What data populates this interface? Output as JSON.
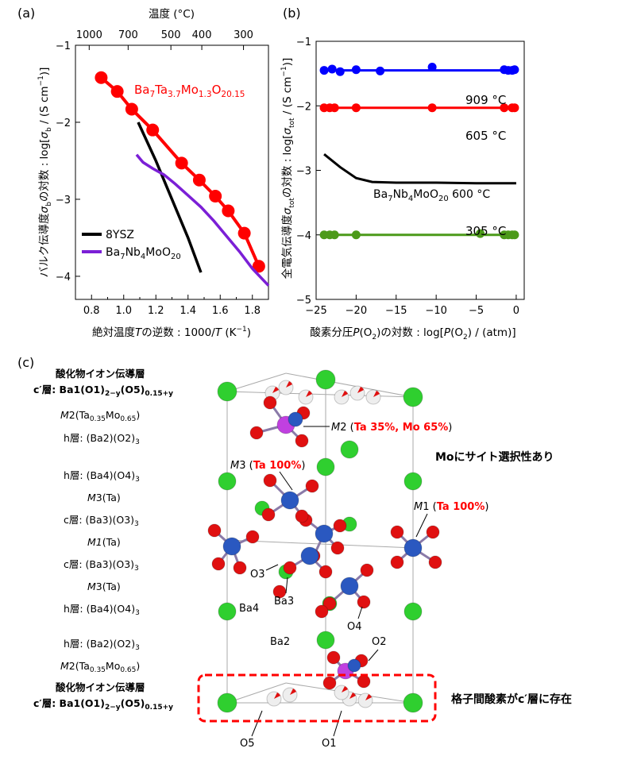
{
  "figure": {
    "panel_a": {
      "label": "(a)",
      "top_axis_label": "温度 (°C)",
      "top_ticks": [
        "1000",
        "700",
        "500",
        "400",
        "300"
      ],
      "x_label": "絶対温度Tの逆数 : 1000/T (K⁻¹)",
      "y_label": "バルク伝導度σbの対数 : log[σb / (S cm⁻¹)]",
      "series_label_main": "Ba7Ta3.7Mo1.3O20.15",
      "legend": [
        "8YSZ",
        "Ba7Nb4MoO20"
      ]
    },
    "panel_b": {
      "label": "(b)",
      "x_label": "酸素分圧P(O2)の対数 : log[P(O2) / (atm)]",
      "y_label": "全電気伝導度σtotの対数 : log[σtot / (S cm⁻¹)]",
      "curve_labels": [
        "909 °C",
        "605 °C",
        "Ba7Nb4MoO20 600 °C",
        "305 °C"
      ]
    },
    "panel_c": {
      "label": "(c)",
      "layers": [
        {
          "title": "酸化物イオン伝導層",
          "formula": "c′層: Ba1(O1)2−y(O5)0.15+y"
        },
        {
          "text": "M2(Ta0.35Mo0.65)"
        },
        {
          "text": "h層: (Ba2)(O2)3"
        },
        {
          "text": "h層: (Ba4)(O4)3"
        },
        {
          "text": "M3(Ta)"
        },
        {
          "text": "c層: (Ba3)(O3)3"
        },
        {
          "text": "M1(Ta)"
        },
        {
          "text": "c層: (Ba3)(O3)3"
        },
        {
          "text": "M3(Ta)"
        },
        {
          "text": "h層: (Ba4)(O4)3"
        },
        {
          "text": "h層: (Ba2)(O2)3"
        },
        {
          "text": "M2(Ta0.35Mo0.65)"
        },
        {
          "title": "酸化物イオン伝導層",
          "formula": "c′層: Ba1(O1)2−y(O5)0.15+y"
        }
      ],
      "annotations": {
        "m2_site": "M2 (Ta 35%, Mo 65%)",
        "m3_site": "M3 (Ta 100%)",
        "m1_site": "M1 (Ta 100%)",
        "site_selectivity": "Moにサイト選択性あり",
        "interstitial": "格子間酸素がc′層に存在",
        "atoms": [
          "O3",
          "Ba3",
          "Ba4",
          "O4",
          "O2",
          "Ba2",
          "O5",
          "O1"
        ]
      }
    }
  },
  "chart_data": [
    {
      "type": "line",
      "panel": "(a)",
      "xlabel": "絶対温度Tの逆数 : 1000/T (K⁻¹)",
      "ylabel": "バルク伝導度σbの対数 : log[σb / (S cm⁻¹)]",
      "xlim": [
        0.7,
        1.9
      ],
      "ylim": [
        -4.3,
        -1.0
      ],
      "x_ticks": [
        0.8,
        1.0,
        1.2,
        1.4,
        1.6,
        1.8
      ],
      "y_ticks": [
        -1,
        -2,
        -3,
        -4
      ],
      "top_axis": {
        "label": "温度 (°C)",
        "ticks": [
          1000,
          700,
          500,
          400,
          300
        ]
      },
      "series": [
        {
          "name": "Ba7Ta3.7Mo1.3O20.15",
          "color": "#ff0000",
          "markers": true,
          "x": [
            0.86,
            0.96,
            1.05,
            1.18,
            1.36,
            1.47,
            1.57,
            1.65,
            1.75,
            1.84
          ],
          "y": [
            -1.42,
            -1.6,
            -1.83,
            -2.1,
            -2.53,
            -2.75,
            -2.96,
            -3.15,
            -3.44,
            -3.87
          ]
        },
        {
          "name": "8YSZ",
          "color": "#000000",
          "markers": false,
          "x": [
            1.09,
            1.2,
            1.3,
            1.4,
            1.48
          ],
          "y": [
            -2.0,
            -2.5,
            -3.0,
            -3.5,
            -3.95
          ]
        },
        {
          "name": "Ba7Nb4MoO20",
          "color": "#7b1fd6",
          "markers": false,
          "x": [
            1.08,
            1.12,
            1.18,
            1.25,
            1.32,
            1.4,
            1.48,
            1.56,
            1.64,
            1.72,
            1.8,
            1.9
          ],
          "y": [
            -2.42,
            -2.52,
            -2.6,
            -2.68,
            -2.8,
            -2.95,
            -3.1,
            -3.28,
            -3.48,
            -3.68,
            -3.9,
            -4.12
          ]
        }
      ]
    },
    {
      "type": "line",
      "panel": "(b)",
      "xlabel": "酸素分圧P(O2)の対数 : log[P(O2) / (atm)]",
      "ylabel": "全電気伝導度σtotの対数 : log[σtot / (S cm⁻¹)]",
      "xlim": [
        -25,
        1
      ],
      "ylim": [
        -5,
        -1
      ],
      "x_ticks": [
        -25,
        -20,
        -15,
        -10,
        -5,
        0
      ],
      "y_ticks": [
        -1,
        -2,
        -3,
        -4,
        -5
      ],
      "series": [
        {
          "name": "909 °C",
          "color": "#0000ff",
          "markers": true,
          "x": [
            -24.0,
            -23.0,
            -22.0,
            -20.0,
            -17.0,
            -10.5,
            -1.5,
            -1.0,
            -0.5,
            -0.2
          ],
          "y": [
            -1.45,
            -1.43,
            -1.47,
            -1.44,
            -1.46,
            -1.4,
            -1.44,
            -1.45,
            -1.45,
            -1.44
          ],
          "fit": [
            -1.45,
            -1.45
          ]
        },
        {
          "name": "605 °C",
          "color": "#ff0000",
          "markers": true,
          "x": [
            -24.0,
            -23.3,
            -22.7,
            -20.0,
            -10.5,
            -1.5,
            -0.5,
            -0.2
          ],
          "y": [
            -2.03,
            -2.03,
            -2.03,
            -2.03,
            -2.03,
            -2.03,
            -2.03,
            -2.03
          ],
          "fit": [
            -2.03,
            -2.03
          ]
        },
        {
          "name": "Ba7Nb4MoO20 600 °C",
          "color": "#000000",
          "markers": false,
          "x": [
            -24.0,
            -22.0,
            -20.0,
            -18.0,
            -15.0,
            -10.0,
            -5.0,
            0.0
          ],
          "y": [
            -2.75,
            -2.95,
            -3.12,
            -3.18,
            -3.19,
            -3.19,
            -3.2,
            -3.2
          ]
        },
        {
          "name": "305 °C",
          "color": "#4c9a1a",
          "markers": true,
          "x": [
            -24.0,
            -23.3,
            -22.7,
            -20.0,
            -4.5,
            -1.5,
            -1.0,
            -0.5,
            -0.2
          ],
          "y": [
            -4.0,
            -4.0,
            -4.0,
            -4.0,
            -3.98,
            -4.0,
            -4.0,
            -4.0,
            -4.0
          ],
          "fit": [
            -4.0,
            -4.0
          ]
        }
      ]
    }
  ]
}
